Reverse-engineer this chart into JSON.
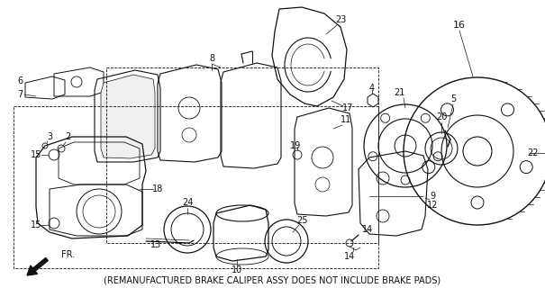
{
  "caption": "(REMANUFACTURED BRAKE CALIPER ASSY DOES NOT INCLUDE BRAKE PADS)",
  "caption_fontsize": 7.0,
  "background_color": "#ffffff",
  "fig_width": 6.05,
  "fig_height": 3.2,
  "dpi": 100,
  "arrow_label": "FR.",
  "lc": "#111111"
}
